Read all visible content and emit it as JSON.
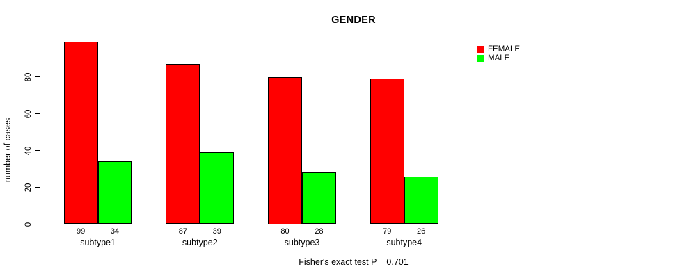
{
  "chart_data": {
    "type": "bar",
    "title": "GENDER",
    "ylabel": "number of cases",
    "xlabel": "",
    "note": "Fisher's exact test P = 0.701",
    "categories": [
      "subtype1",
      "subtype2",
      "subtype3",
      "subtype4"
    ],
    "series": [
      {
        "name": "FEMALE",
        "color": "#ff0000",
        "values": [
          99,
          87,
          80,
          79
        ]
      },
      {
        "name": "MALE",
        "color": "#00ff00",
        "values": [
          34,
          39,
          28,
          26
        ]
      }
    ],
    "bar_value_labels": {
      "FEMALE": [
        99,
        87,
        80,
        79
      ],
      "MALE": [
        34,
        39,
        28,
        26
      ]
    },
    "yticks": [
      0,
      20,
      40,
      60,
      80
    ],
    "ylim": [
      0,
      106
    ],
    "grid": false,
    "legend_position": "top-right",
    "legend_entries": [
      "FEMALE",
      "MALE"
    ]
  },
  "colors": {
    "female": "#ff0000",
    "male": "#00ff00",
    "bar_border": "#000000",
    "axis": "#000000",
    "text": "#000000",
    "background": "#ffffff"
  }
}
